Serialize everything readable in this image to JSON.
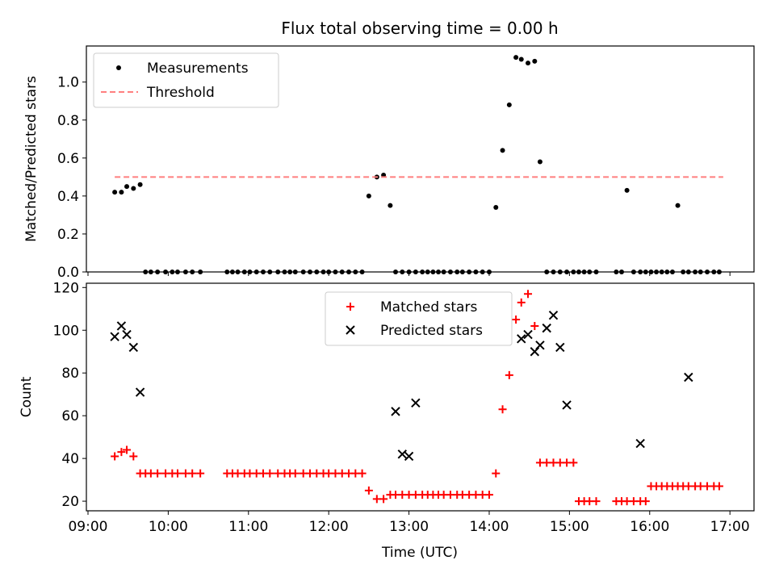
{
  "chart_data": {
    "title": "Flux total observing time = 0.00 h",
    "xlabel": "Time (UTC)",
    "x_ticks": [
      "09:00",
      "10:00",
      "11:00",
      "12:00",
      "13:00",
      "14:00",
      "15:00",
      "16:00",
      "17:00"
    ],
    "xlim_hours": [
      8.98,
      17.3
    ],
    "panels": [
      {
        "type": "scatter",
        "ylabel": "Matched/Predicted stars",
        "ylim": [
          0,
          1.19
        ],
        "y_ticks": [
          "0.0",
          "0.2",
          "0.4",
          "0.6",
          "0.8",
          "1.0"
        ],
        "y_tick_values": [
          0,
          0.2,
          0.4,
          0.6,
          0.8,
          1.0
        ],
        "legend": {
          "position": "upper left",
          "entries": [
            "Measurements",
            "Threshold"
          ]
        },
        "series": [
          {
            "name": "Measurements",
            "marker": "dot",
            "color": "#000000",
            "x": [
              "09:20",
              "09:25",
              "09:29",
              "09:34",
              "09:39",
              "09:43",
              "09:47",
              "09:52",
              "09:58",
              "10:03",
              "10:07",
              "10:13",
              "10:18",
              "10:24",
              "10:44",
              "10:48",
              "10:52",
              "10:57",
              "11:01",
              "11:06",
              "11:11",
              "11:16",
              "11:22",
              "11:27",
              "11:31",
              "11:35",
              "11:41",
              "11:46",
              "11:51",
              "11:56",
              "12:00",
              "12:05",
              "12:10",
              "12:15",
              "12:20",
              "12:25",
              "12:30",
              "12:36",
              "12:41",
              "12:46",
              "12:50",
              "12:55",
              "13:00",
              "13:05",
              "13:10",
              "13:14",
              "13:18",
              "13:22",
              "13:26",
              "13:31",
              "13:36",
              "13:40",
              "13:45",
              "13:50",
              "13:55",
              "14:00",
              "14:05",
              "14:10",
              "14:15",
              "14:20",
              "14:24",
              "14:29",
              "14:34",
              "14:38",
              "14:43",
              "14:48",
              "14:53",
              "14:58",
              "15:03",
              "15:07",
              "15:11",
              "15:15",
              "15:20",
              "15:35",
              "15:39",
              "15:43",
              "15:48",
              "15:53",
              "15:57",
              "16:01",
              "16:05",
              "16:09",
              "16:13",
              "16:17",
              "16:21",
              "16:25",
              "16:29",
              "16:34",
              "16:38",
              "16:43",
              "16:48",
              "16:52"
            ],
            "y": [
              0.42,
              0.42,
              0.45,
              0.44,
              0.46,
              0,
              0,
              0,
              0,
              0,
              0,
              0,
              0,
              0,
              0,
              0,
              0,
              0,
              0,
              0,
              0,
              0,
              0,
              0,
              0,
              0,
              0,
              0,
              0,
              0,
              0,
              0,
              0,
              0,
              0,
              0,
              0.4,
              0.5,
              0.51,
              0.35,
              0,
              0,
              0,
              0,
              0,
              0,
              0,
              0,
              0,
              0,
              0,
              0,
              0,
              0,
              0,
              0,
              0.34,
              0.64,
              0.88,
              1.13,
              1.12,
              1.1,
              1.11,
              0.58,
              0,
              0,
              0,
              0,
              0,
              0,
              0,
              0,
              0,
              0,
              0,
              0.43,
              0,
              0,
              0,
              0,
              0,
              0,
              0,
              0,
              0.35,
              0,
              0,
              0,
              0,
              0,
              0,
              0
            ]
          },
          {
            "name": "Threshold",
            "type": "line",
            "style": "dashed",
            "color": "#ff7f7f",
            "x": [
              "09:20",
              "16:55"
            ],
            "y": [
              0.5,
              0.5
            ]
          }
        ]
      },
      {
        "type": "scatter",
        "ylabel": "Count",
        "ylim": [
          15.5,
          122
        ],
        "y_ticks": [
          "20",
          "40",
          "60",
          "80",
          "100",
          "120"
        ],
        "y_tick_values": [
          20,
          40,
          60,
          80,
          100,
          120
        ],
        "legend": {
          "position": "upper center",
          "entries": [
            "Matched stars",
            "Predicted stars"
          ]
        },
        "series": [
          {
            "name": "Matched stars",
            "marker": "plus",
            "color": "#ff0000",
            "x": [
              "09:20",
              "09:25",
              "09:29",
              "09:34",
              "09:39",
              "09:43",
              "09:47",
              "09:52",
              "09:58",
              "10:03",
              "10:07",
              "10:13",
              "10:18",
              "10:24",
              "10:44",
              "10:48",
              "10:52",
              "10:57",
              "11:01",
              "11:06",
              "11:11",
              "11:16",
              "11:22",
              "11:27",
              "11:31",
              "11:35",
              "11:41",
              "11:46",
              "11:51",
              "11:56",
              "12:00",
              "12:05",
              "12:10",
              "12:15",
              "12:20",
              "12:25",
              "12:30",
              "12:36",
              "12:41",
              "12:46",
              "12:50",
              "12:55",
              "13:00",
              "13:05",
              "13:10",
              "13:14",
              "13:18",
              "13:22",
              "13:26",
              "13:31",
              "13:36",
              "13:40",
              "13:45",
              "13:50",
              "13:55",
              "14:00",
              "14:05",
              "14:10",
              "14:15",
              "14:20",
              "14:24",
              "14:29",
              "14:34",
              "14:38",
              "14:43",
              "14:48",
              "14:53",
              "14:58",
              "15:03",
              "15:07",
              "15:11",
              "15:15",
              "15:20",
              "15:35",
              "15:39",
              "15:43",
              "15:48",
              "15:53",
              "15:57",
              "16:01",
              "16:05",
              "16:09",
              "16:13",
              "16:17",
              "16:21",
              "16:25",
              "16:29",
              "16:34",
              "16:38",
              "16:43",
              "16:48",
              "16:52"
            ],
            "y": [
              41,
              43,
              44,
              41,
              33,
              33,
              33,
              33,
              33,
              33,
              33,
              33,
              33,
              33,
              33,
              33,
              33,
              33,
              33,
              33,
              33,
              33,
              33,
              33,
              33,
              33,
              33,
              33,
              33,
              33,
              33,
              33,
              33,
              33,
              33,
              33,
              25,
              21,
              21,
              23,
              23,
              23,
              23,
              23,
              23,
              23,
              23,
              23,
              23,
              23,
              23,
              23,
              23,
              23,
              23,
              23,
              33,
              63,
              79,
              105,
              113,
              117,
              102,
              38,
              38,
              38,
              38,
              38,
              38,
              20,
              20,
              20,
              20,
              20,
              20,
              20,
              20,
              20,
              20,
              27,
              27,
              27,
              27,
              27,
              27,
              27,
              27,
              27,
              27,
              27,
              27,
              27
            ]
          },
          {
            "name": "Predicted stars",
            "marker": "x",
            "color": "#000000",
            "x": [
              "09:20",
              "09:25",
              "09:29",
              "09:34",
              "09:39",
              "12:50",
              "12:55",
              "13:00",
              "13:05",
              "14:24",
              "14:29",
              "14:34",
              "14:38",
              "14:43",
              "14:48",
              "14:53",
              "14:58",
              "15:53",
              "16:29"
            ],
            "y": [
              97,
              102,
              98,
              92,
              71,
              62,
              42,
              41,
              66,
              96,
              98,
              90,
              93,
              101,
              107,
              92,
              65,
              47,
              78
            ]
          }
        ]
      }
    ]
  }
}
